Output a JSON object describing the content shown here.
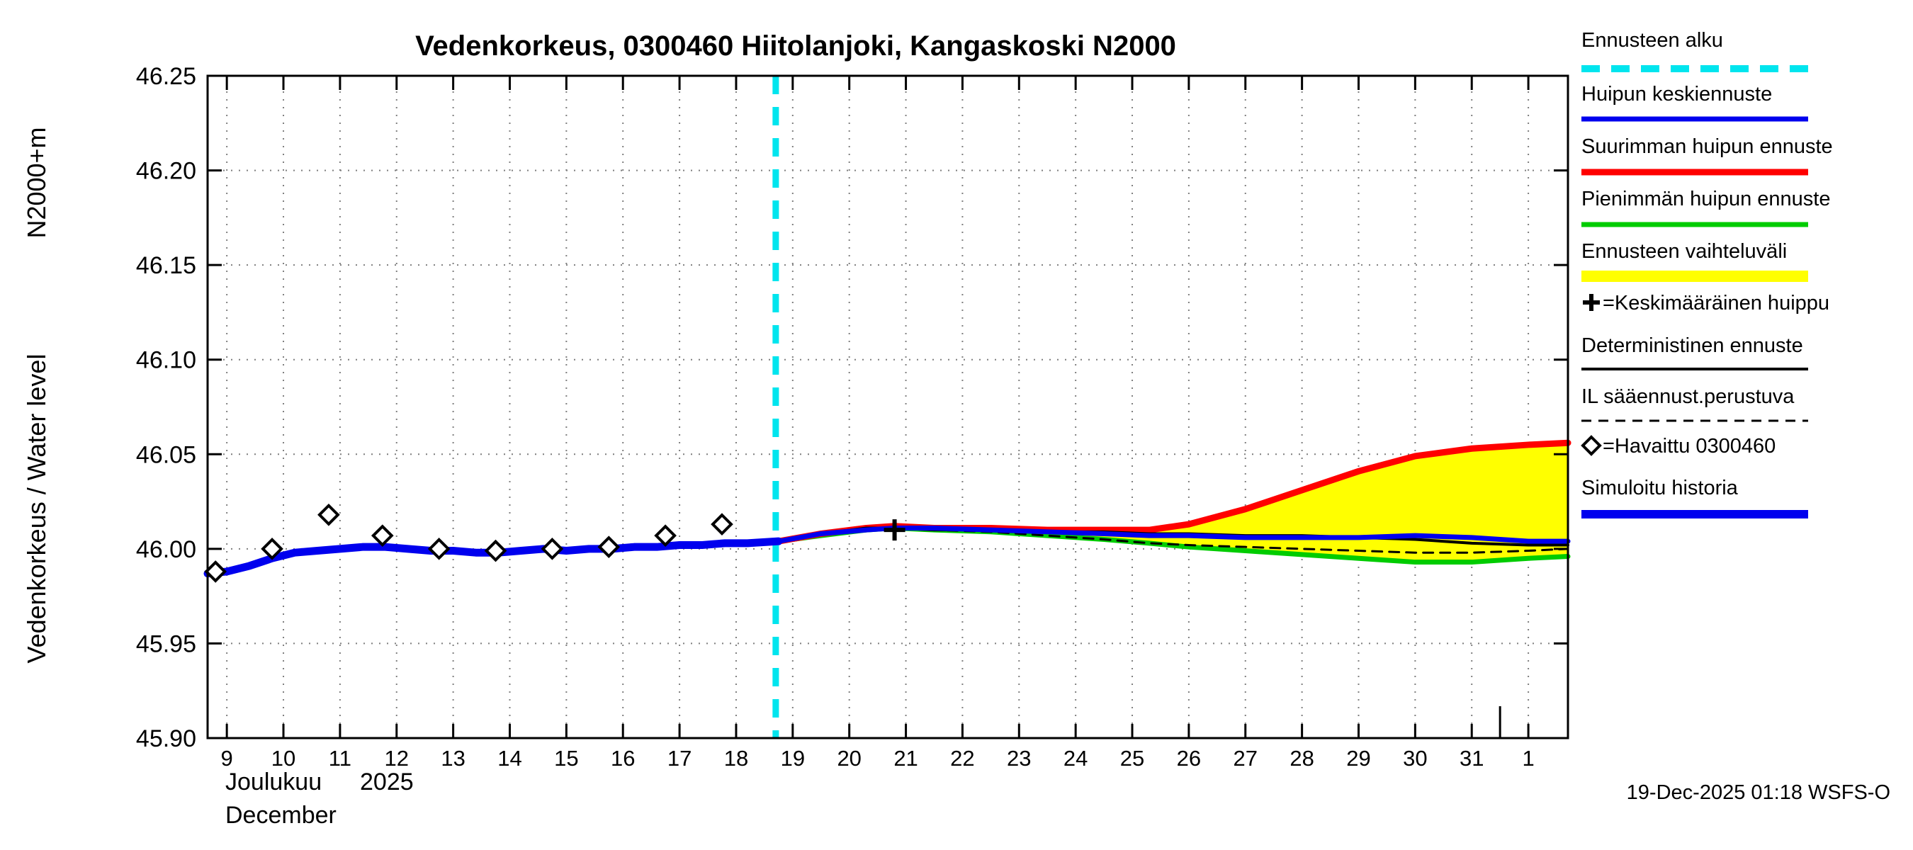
{
  "page": {
    "title": "Vedenkorkeus, 0300460 Hiitolanjoki, Kangaskoski N2000",
    "timestamp": "19-Dec-2025 01:18 WSFS-O"
  },
  "chart_data": {
    "type": "line",
    "title": "Vedenkorkeus, 0300460 Hiitolanjoki, Kangaskoski N2000",
    "ylabel": "Vedenkorkeus / Water level",
    "ylabel_unit": "N2000+m",
    "xlabel_fi": "Joulukuu",
    "xlabel_year": "2025",
    "xlabel_en": "December",
    "timestamp": "19-Dec-2025 01:18 WSFS-O",
    "ylim": [
      45.9,
      46.25
    ],
    "yticks": [
      45.9,
      45.95,
      46.0,
      46.05,
      46.1,
      46.15,
      46.2,
      46.25
    ],
    "ytick_labels": [
      "45.90",
      "45.95",
      "46.00",
      "46.05",
      "46.10",
      "46.15",
      "46.20",
      "46.25"
    ],
    "xticks": [
      9,
      10,
      11,
      12,
      13,
      14,
      15,
      16,
      17,
      18,
      19,
      20,
      21,
      22,
      23,
      24,
      25,
      26,
      27,
      28,
      29,
      30,
      31,
      32
    ],
    "xtick_labels": [
      "9",
      "10",
      "11",
      "12",
      "13",
      "14",
      "15",
      "16",
      "17",
      "18",
      "19",
      "20",
      "21",
      "22",
      "23",
      "24",
      "25",
      "26",
      "27",
      "28",
      "29",
      "30",
      "31",
      "1"
    ],
    "x_domain": [
      8.66,
      32.7
    ],
    "forecast_start_x": 18.7,
    "month_boundary_x": 31.5,
    "grid": true,
    "legend_position": "right",
    "colors": {
      "blue": "#0000EE",
      "red": "#FF0000",
      "green": "#00CC00",
      "band": "#FFFF00",
      "cyan": "#00E5EE",
      "black": "#000000",
      "grid": "#7F7F7F"
    },
    "series": {
      "history": {
        "name": "Simuloitu historia",
        "x": [
          8.66,
          9.0,
          9.4,
          9.8,
          10.2,
          10.6,
          11.0,
          11.4,
          11.8,
          12.2,
          12.6,
          13.0,
          13.4,
          13.8,
          14.2,
          14.6,
          15.0,
          15.4,
          15.8,
          16.2,
          16.6,
          17.0,
          17.4,
          17.8,
          18.2,
          18.75
        ],
        "y": [
          45.987,
          45.988,
          45.991,
          45.995,
          45.998,
          45.999,
          46.0,
          46.001,
          46.001,
          46.0,
          45.999,
          45.999,
          45.998,
          45.998,
          45.999,
          46.0,
          45.999,
          46.0,
          46.0,
          46.001,
          46.001,
          46.002,
          46.002,
          46.003,
          46.003,
          46.004
        ]
      },
      "observed": {
        "name": "Havaittu 0300460",
        "x": [
          8.8,
          9.8,
          10.8,
          11.75,
          12.75,
          13.75,
          14.75,
          15.75,
          16.75,
          17.75
        ],
        "y": [
          45.988,
          46.0,
          46.018,
          46.007,
          46.0,
          45.999,
          46.0,
          46.001,
          46.007,
          46.013
        ]
      },
      "max_forecast": {
        "name": "Suurimman huipun ennuste",
        "x": [
          18.75,
          19.5,
          20.3,
          20.8,
          21.5,
          22.5,
          23.5,
          24.5,
          25.3,
          26,
          27,
          28,
          29,
          30,
          31,
          32,
          32.7
        ],
        "y": [
          46.004,
          46.008,
          46.011,
          46.012,
          46.011,
          46.011,
          46.01,
          46.01,
          46.01,
          46.013,
          46.021,
          46.031,
          46.041,
          46.049,
          46.053,
          46.055,
          46.056
        ]
      },
      "min_forecast": {
        "name": "Pienimmän huipun ennuste",
        "x": [
          18.75,
          19.5,
          20.3,
          20.8,
          21.5,
          22.5,
          23.5,
          24.5,
          25.3,
          26,
          27,
          28,
          29,
          30,
          31,
          32,
          32.7
        ],
        "y": [
          46.004,
          46.007,
          46.01,
          46.011,
          46.01,
          46.009,
          46.007,
          46.005,
          46.003,
          46.001,
          45.999,
          45.997,
          45.995,
          45.993,
          45.993,
          45.995,
          45.996
        ]
      },
      "mean_forecast": {
        "name": "Huipun keskiennuste",
        "x": [
          18.75,
          19.5,
          20.3,
          20.8,
          21.5,
          22.5,
          23.5,
          24.5,
          25.3,
          26,
          27,
          28,
          29,
          30,
          31,
          32,
          32.7
        ],
        "y": [
          46.004,
          46.008,
          46.01,
          46.011,
          46.011,
          46.01,
          46.009,
          46.008,
          46.007,
          46.007,
          46.006,
          46.006,
          46.006,
          46.007,
          46.006,
          46.004,
          46.004
        ]
      },
      "deterministic": {
        "name": "Deterministinen ennuste",
        "x": [
          18.75,
          19.5,
          20.3,
          20.8,
          21.5,
          22.5,
          23.5,
          24.5,
          25.3,
          26,
          27,
          28,
          29,
          30,
          31,
          32,
          32.7
        ],
        "y": [
          46.004,
          46.008,
          46.011,
          46.011,
          46.01,
          46.01,
          46.009,
          46.009,
          46.008,
          46.008,
          46.007,
          46.007,
          46.006,
          46.005,
          46.003,
          46.002,
          46.002
        ]
      },
      "il_forecast": {
        "name": "IL sääennust.perustuva",
        "x": [
          18.75,
          19.5,
          20.3,
          20.8,
          21.5,
          22.5,
          23.5,
          24.5,
          25.3,
          26,
          27,
          28,
          29,
          30,
          31,
          32,
          32.7
        ],
        "y": [
          46.004,
          46.008,
          46.01,
          46.011,
          46.01,
          46.009,
          46.007,
          46.005,
          46.003,
          46.002,
          46.001,
          46.0,
          45.999,
          45.998,
          45.998,
          45.999,
          46.0
        ]
      },
      "mean_peak_marker": {
        "name": "Keskimääräinen huippu",
        "x": 20.8,
        "y": 46.01
      }
    },
    "legend": [
      {
        "label": "Ennusteen alku",
        "color": "#00E5EE",
        "width": 10,
        "dash": "26 16"
      },
      {
        "label": "Huipun keskiennuste",
        "color": "#0000EE",
        "width": 7
      },
      {
        "label": "Suurimman huipun ennuste",
        "color": "#FF0000",
        "width": 9
      },
      {
        "label": "Pienimmän huipun ennuste",
        "color": "#00CC00",
        "width": 7
      },
      {
        "label": "Ennusteen vaihteluväli",
        "color": "#FFFF00",
        "width": 16
      },
      {
        "label": "=Keskimääräinen huippu",
        "symbol": "plus"
      },
      {
        "label": "Deterministinen ennuste",
        "color": "#000000",
        "width": 4
      },
      {
        "label": "IL sääennust.perustuva",
        "color": "#000000",
        "width": 3,
        "dash": "14 10"
      },
      {
        "label": "=Havaittu 0300460",
        "symbol": "diamond"
      },
      {
        "label": "Simuloitu historia",
        "color": "#0000EE",
        "width": 12
      }
    ]
  }
}
